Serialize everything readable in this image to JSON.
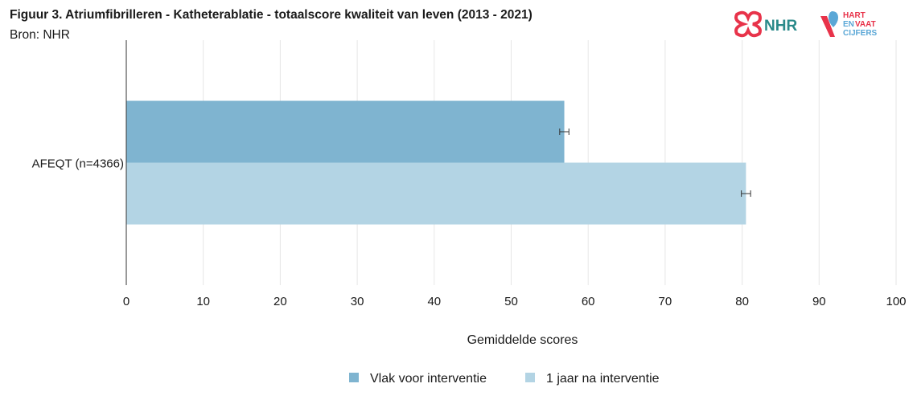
{
  "header": {
    "title": "Figuur 3. Atriumfibrilleren - Katheterablatie - totaalscore kwaliteit van leven (2013 - 2021)",
    "source": "Bron: NHR"
  },
  "logos": {
    "nhr": {
      "text": "NHR",
      "icon": "nhr-knot-logo",
      "color": "#e8334a",
      "text_color": "#2a8a8a"
    },
    "hart_en_vaat": {
      "line1": "HART",
      "line2a": "EN",
      "line2b": "VAAT",
      "line3": "CIJFERS",
      "icon": "hart-en-vaat-cijfers-logo",
      "red": "#e8334a",
      "blue": "#5aa7d6"
    }
  },
  "chart_data": {
    "type": "bar",
    "orientation": "horizontal",
    "categories": [
      "AFEQT (n=4366)"
    ],
    "series": [
      {
        "name": "Vlak voor interventie",
        "values": [
          56.9
        ],
        "error": [
          0.6
        ],
        "color": "#7fb4d0"
      },
      {
        "name": "1 jaar na interventie",
        "values": [
          80.5
        ],
        "error": [
          0.6
        ],
        "color": "#b3d4e4"
      }
    ],
    "xlabel": "Gemiddelde scores",
    "ylabel": "",
    "xlim": [
      0,
      100
    ],
    "xticks": [
      0,
      10,
      20,
      30,
      40,
      50,
      60,
      70,
      80,
      90,
      100
    ],
    "grid": true,
    "legend_position": "bottom"
  }
}
